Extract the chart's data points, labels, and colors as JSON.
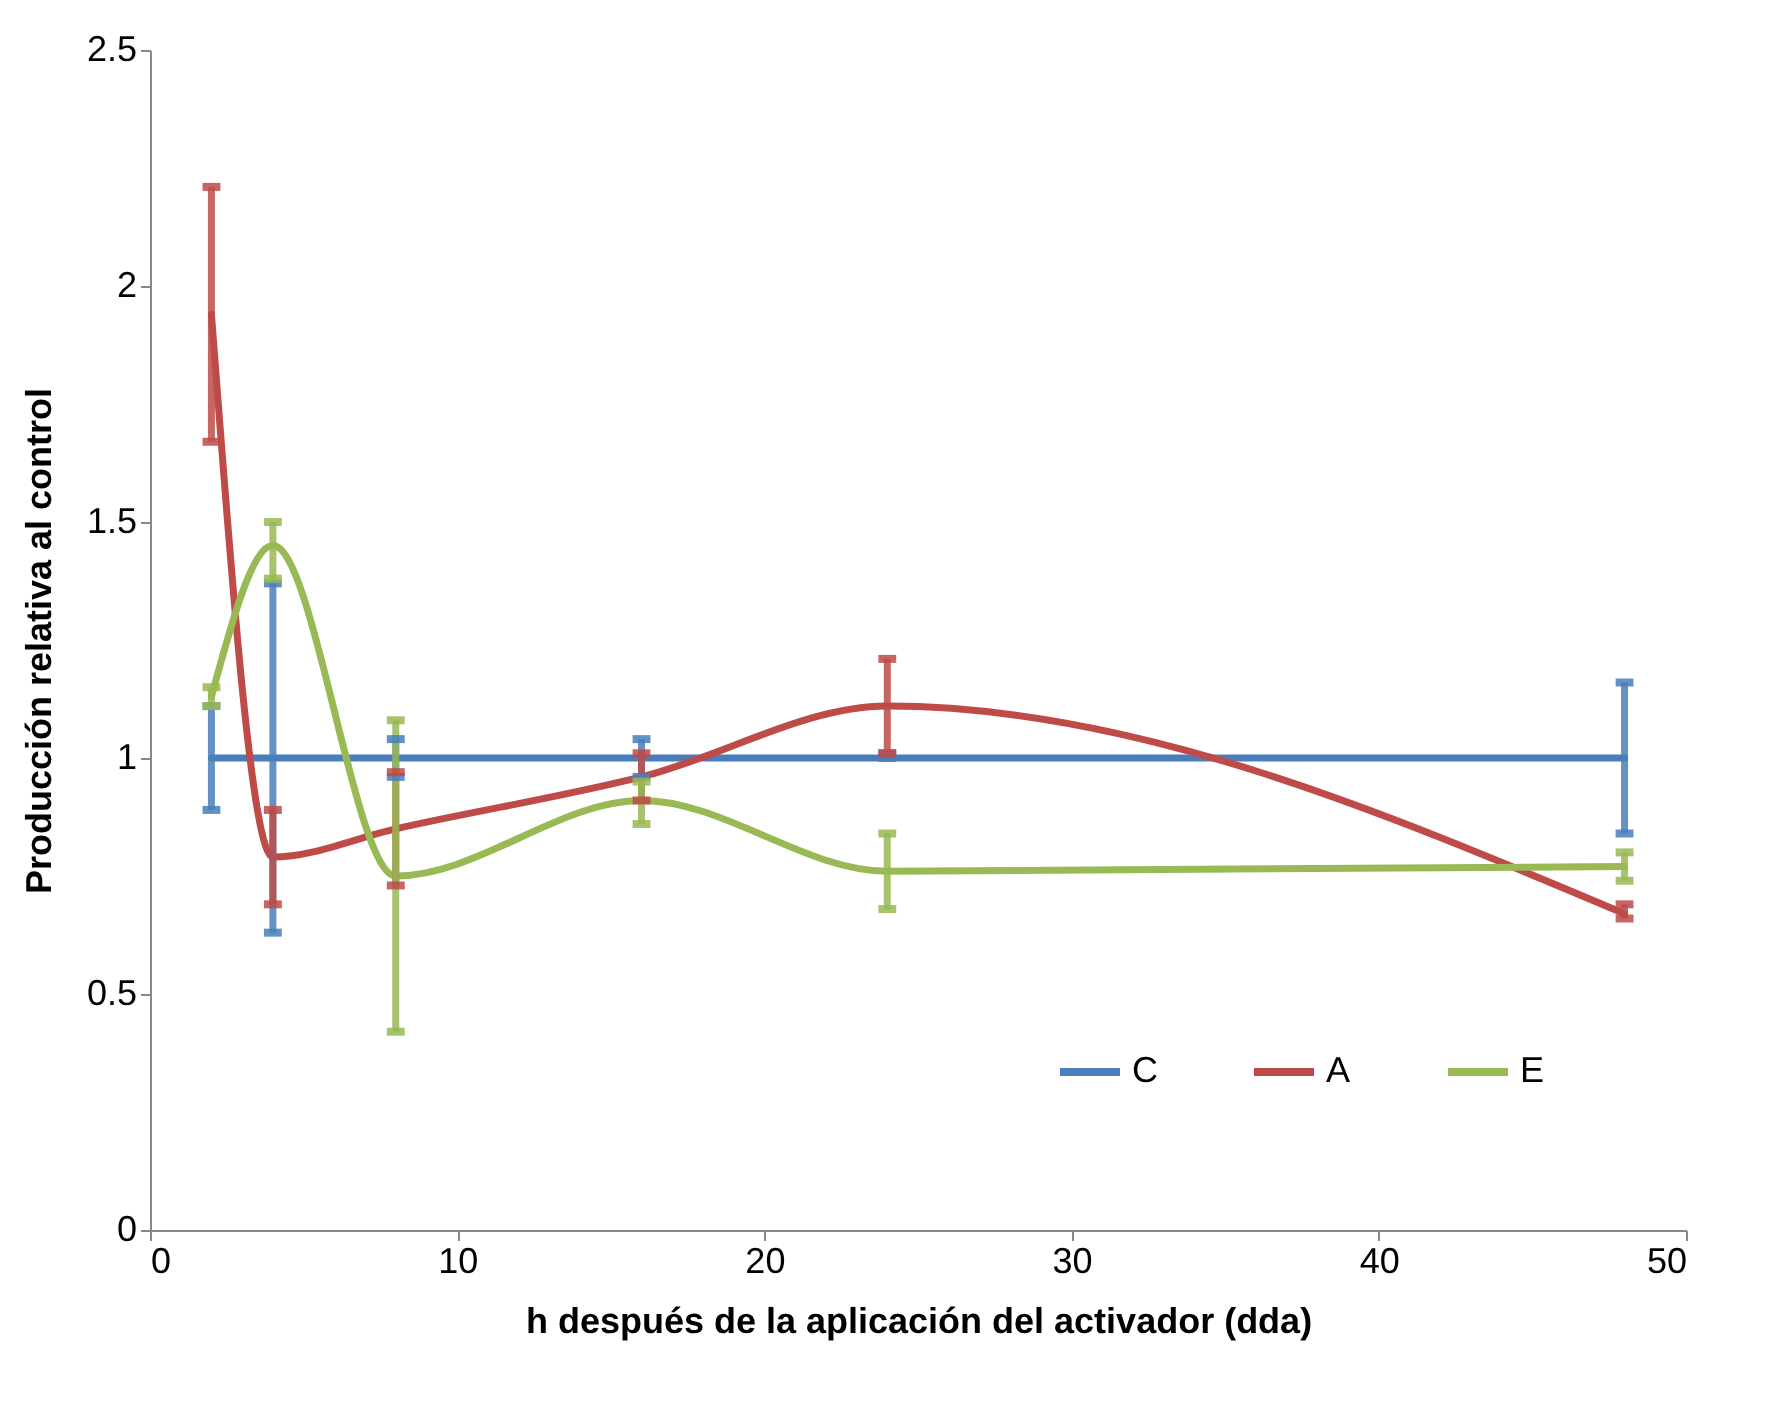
{
  "chart_data": {
    "type": "line",
    "xlabel": "h después de la aplicación del activador (dda)",
    "ylabel": "Producción relativa al control",
    "x": [
      2,
      4,
      8,
      16,
      24,
      48
    ],
    "series": [
      {
        "name": "C",
        "color": "#4a7ebb",
        "values": [
          1,
          1,
          1,
          1,
          1,
          1
        ],
        "errors": [
          [
            0.89,
            1.11
          ],
          [
            0.63,
            1.37
          ],
          [
            0.96,
            1.04
          ],
          [
            0.96,
            1.04
          ],
          [
            1.0,
            1.01
          ],
          [
            0.84,
            1.16
          ]
        ]
      },
      {
        "name": "A",
        "color": "#be4b48",
        "values": [
          1.94,
          0.79,
          0.85,
          0.96,
          1.11,
          0.67
        ],
        "errors": [
          [
            1.67,
            2.21
          ],
          [
            0.69,
            0.89
          ],
          [
            0.73,
            0.97
          ],
          [
            0.91,
            1.01
          ],
          [
            1.01,
            1.21
          ],
          [
            0.66,
            0.69
          ]
        ]
      },
      {
        "name": "E",
        "color": "#98b954",
        "values": [
          1.13,
          1.45,
          0.75,
          0.91,
          0.76,
          0.77
        ],
        "errors": [
          [
            1.11,
            1.15
          ],
          [
            1.38,
            1.5
          ],
          [
            0.42,
            1.08
          ],
          [
            0.86,
            0.95
          ],
          [
            0.68,
            0.84
          ],
          [
            0.74,
            0.8
          ]
        ]
      }
    ],
    "xlim": [
      0,
      50
    ],
    "xticks": [
      0,
      10,
      20,
      30,
      40,
      50
    ],
    "ylim": [
      0,
      2.5
    ],
    "yticks": [
      0,
      0.5,
      1,
      1.5,
      2,
      2.5
    ],
    "grid": false,
    "legend": "bottom right",
    "marker": "none",
    "line_style": "solid"
  }
}
